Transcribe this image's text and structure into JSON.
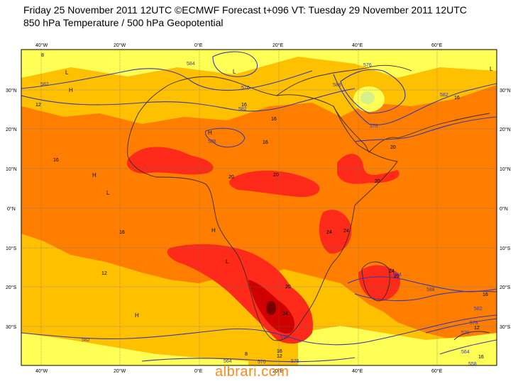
{
  "header": {
    "title_line1": "Friday 25 November 2011 12UTC ©ECMWF Forecast t+096 VT: Tuesday 29 November 2011 12UTC",
    "title_line2": "850 hPa Temperature / 500 hPa Geopotential"
  },
  "axes": {
    "top_lon_ticks": [
      "40°W",
      "20°W",
      "0°E",
      "20°E",
      "40°E",
      "60°E"
    ],
    "bottom_lon_ticks": [
      "40°W",
      "20°W",
      "0°E",
      "20°E",
      "40°E",
      "60°E"
    ],
    "left_lat_ticks": [
      "30°N",
      "20°N",
      "10°N",
      "0°N",
      "10°S",
      "20°S",
      "30°S"
    ],
    "right_lat_ticks": [
      "30°N",
      "20°N",
      "10°N",
      "0°N",
      "10°S",
      "20°S",
      "30°S"
    ]
  },
  "colors": {
    "temp_8_12": "#ffff55",
    "temp_12_16": "#ffc000",
    "temp_16_20": "#ff7e00",
    "temp_20_24": "#ff2a1a",
    "temp_24_28": "#d00000",
    "temp_28_plus": "#7a0000",
    "cold": "#d8f08a",
    "geopotential_line": "#3a3aa8",
    "coast": "#3a2a1a"
  },
  "temperature_labels": [
    "8",
    "12",
    "16",
    "16",
    "20",
    "20",
    "20",
    "24",
    "24",
    "16",
    "24",
    "16",
    "20",
    "16",
    "12",
    "16",
    "8",
    "12",
    "16",
    "12",
    "16",
    "20",
    "24",
    "20",
    "16"
  ],
  "geopotential_labels": [
    "582",
    "582",
    "570",
    "584",
    "588",
    "588",
    "576",
    "576",
    "582",
    "588",
    "584",
    "582",
    "564",
    "570",
    "576",
    "576",
    "576",
    "582",
    "558",
    "564",
    "570"
  ],
  "pressure_markers": [
    "H",
    "L",
    "H",
    "L",
    "H",
    "L",
    "H",
    "L",
    "H",
    "L"
  ],
  "watermark": "albrari.com"
}
